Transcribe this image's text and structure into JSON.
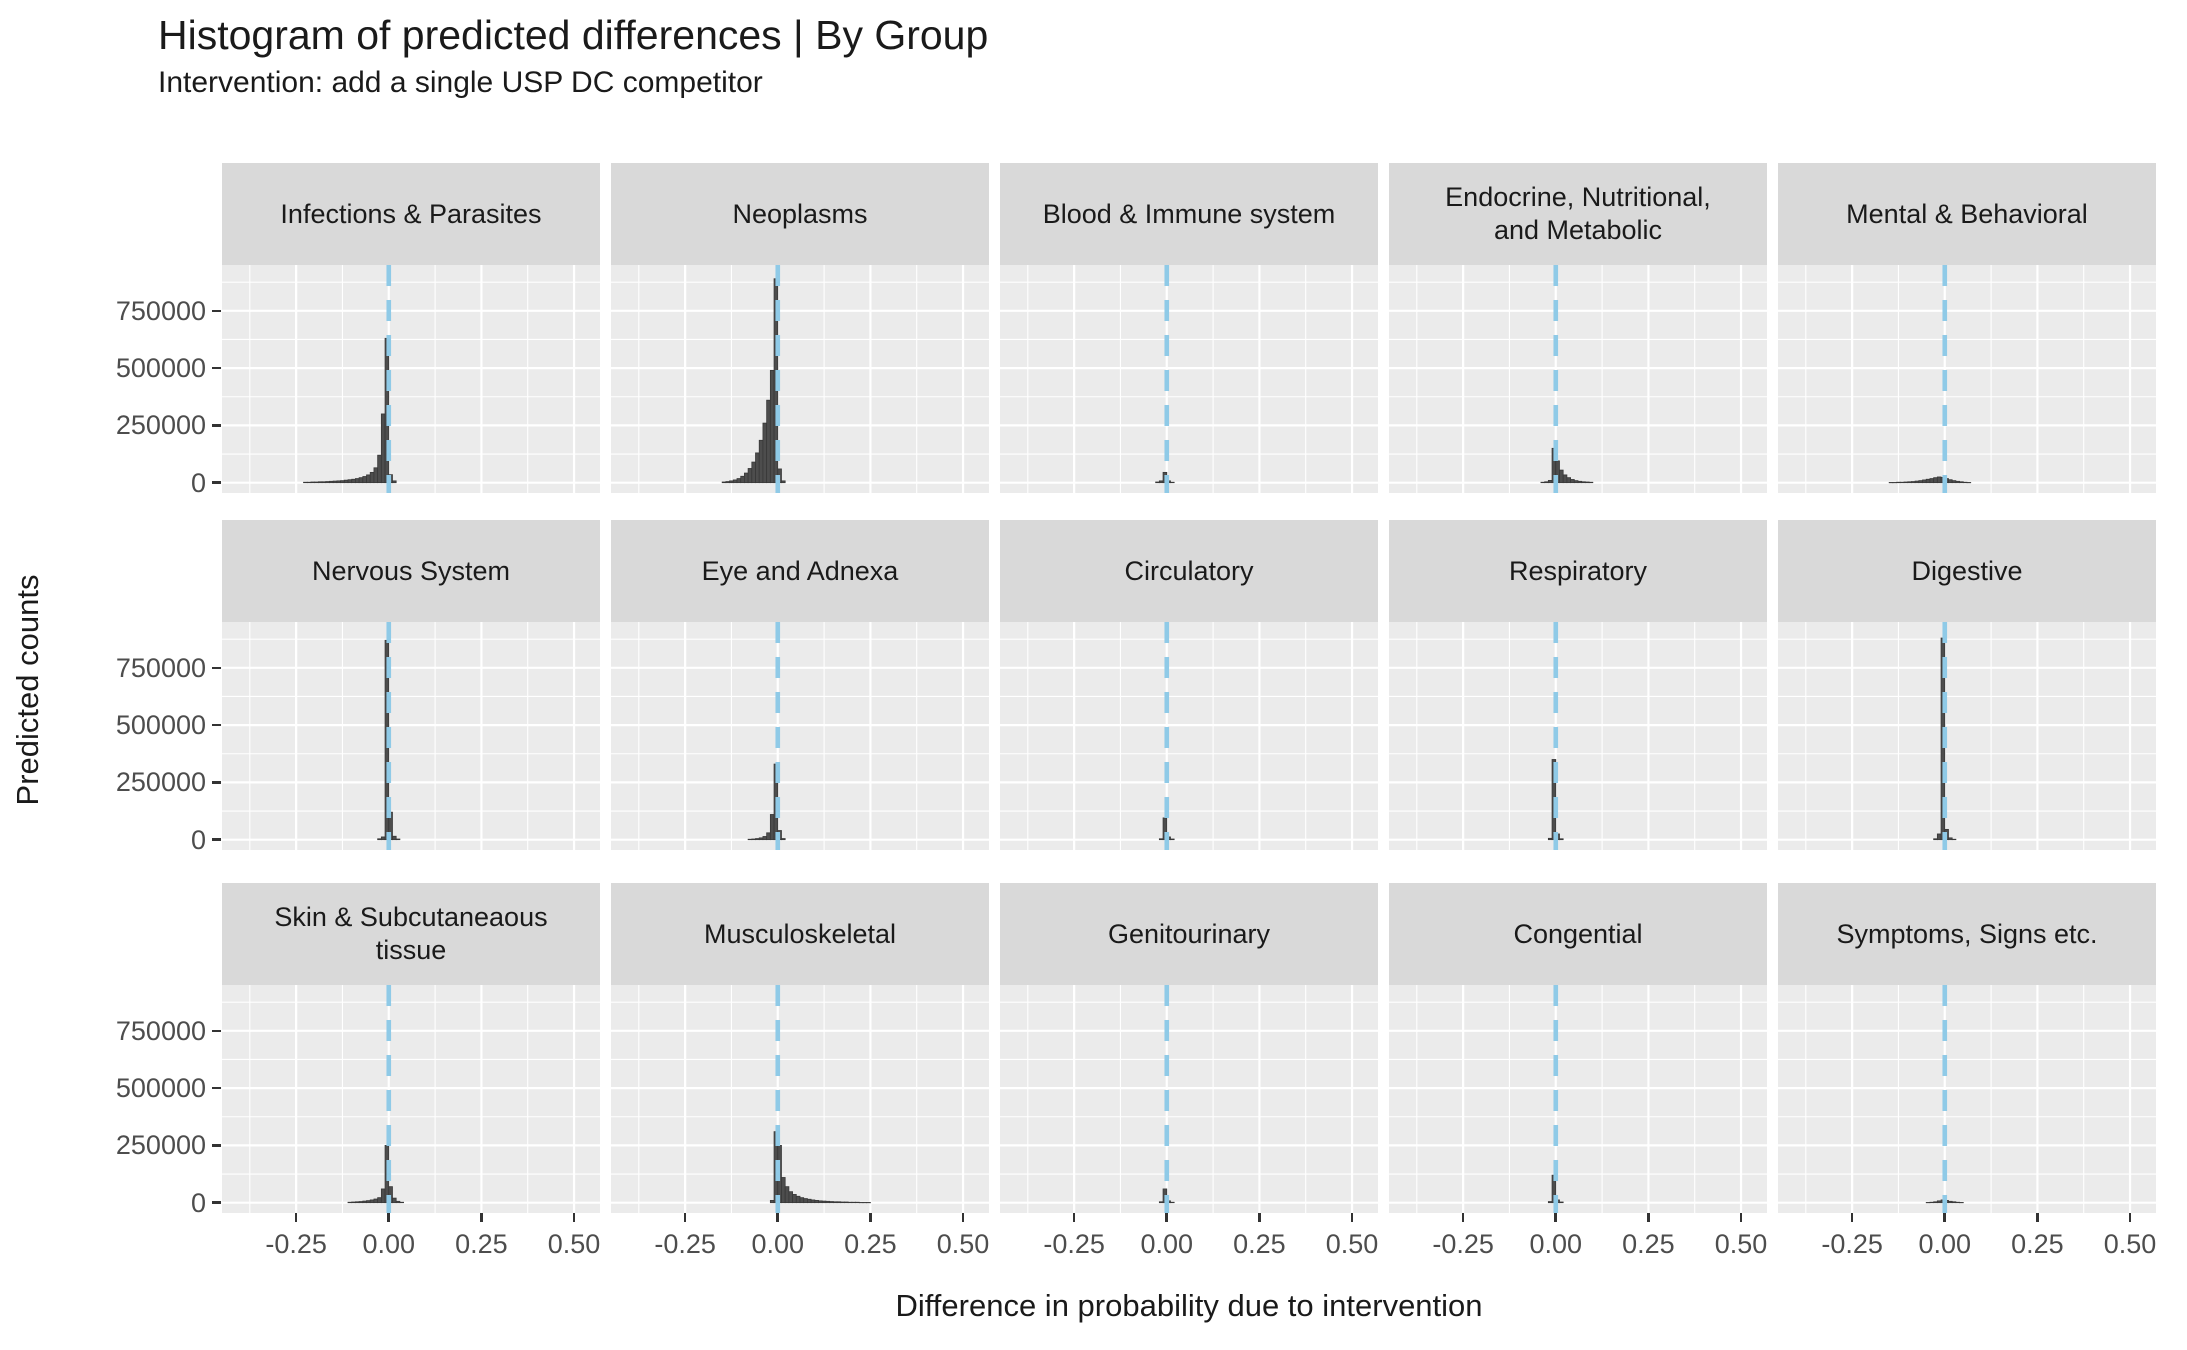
{
  "header": {
    "title": "Histogram of predicted differences | By Group",
    "subtitle": "Intervention: add a single USP DC competitor"
  },
  "chart_data": {
    "type": "histogram",
    "title": "Histogram of predicted differences | By Group",
    "subtitle": "Intervention: add a single USP DC competitor",
    "xlabel": "Difference in probability due to intervention",
    "ylabel": "Predicted counts",
    "facet_layout": {
      "rows": 3,
      "cols": 5
    },
    "x_domain": [
      -0.45,
      0.57
    ],
    "y_domain": [
      -45000,
      950000
    ],
    "x_tick_values": [
      -0.25,
      0.0,
      0.25,
      0.5
    ],
    "x_tick_labels": [
      "-0.25",
      "0.00",
      "0.25",
      "0.50"
    ],
    "y_tick_values": [
      0,
      250000,
      500000,
      750000
    ],
    "y_tick_labels": [
      "0",
      "250000",
      "500000",
      "750000"
    ],
    "x_minor_ticks": [
      -0.375,
      -0.125,
      0.125,
      0.375
    ],
    "y_minor_ticks": [
      125000,
      375000,
      625000,
      875000
    ],
    "grid": "on",
    "panel_bg": "#EBEBEB",
    "strip_bg": "#D9D9D9",
    "grid_color": "#FFFFFF",
    "bar_fill": "#4D4D4D",
    "bar_stroke": "#383838",
    "reference_line": {
      "x": 0,
      "color": "#8FCAE7",
      "style": "dashed"
    },
    "binwidth": 0.01,
    "facets": [
      {
        "label": "Infections & Parasites",
        "bin_start": -0.23,
        "counts": [
          2000,
          2000,
          3000,
          3000,
          4000,
          4000,
          5000,
          6000,
          7000,
          8000,
          9000,
          11000,
          13000,
          15000,
          18000,
          22000,
          27000,
          34000,
          45000,
          65000,
          120000,
          300000,
          630000,
          35000,
          8000
        ]
      },
      {
        "label": "Neoplasms",
        "bin_start": -0.15,
        "counts": [
          3000,
          5000,
          8000,
          12000,
          18000,
          28000,
          42000,
          62000,
          90000,
          130000,
          185000,
          260000,
          360000,
          490000,
          890000,
          60000,
          8000
        ]
      },
      {
        "label": "Blood & Immune system",
        "bin_start": -0.03,
        "counts": [
          3000,
          8000,
          45000,
          8000,
          2000
        ]
      },
      {
        "label": "Endocrine, Nutritional,\nand Metabolic",
        "bin_start": -0.04,
        "counts": [
          2000,
          4000,
          10000,
          150000,
          95000,
          55000,
          34000,
          22000,
          14000,
          9000,
          6000,
          4000,
          3000,
          2000
        ]
      },
      {
        "label": "Mental & Behavioral",
        "bin_start": -0.15,
        "counts": [
          1000,
          1000,
          2000,
          2000,
          3000,
          4000,
          5000,
          7000,
          9000,
          12000,
          15000,
          18000,
          22000,
          25000,
          23000,
          18000,
          13000,
          9000,
          6000,
          4000,
          2000,
          1000
        ]
      },
      {
        "label": "Nervous System",
        "bin_start": -0.03,
        "counts": [
          4000,
          12000,
          870000,
          120000,
          15000,
          3000
        ]
      },
      {
        "label": "Eye and Adnexa",
        "bin_start": -0.08,
        "counts": [
          2000,
          3000,
          5000,
          8000,
          14000,
          30000,
          110000,
          330000,
          40000,
          5000
        ]
      },
      {
        "label": "Circulatory",
        "bin_start": -0.02,
        "counts": [
          4000,
          95000,
          12000,
          3000
        ]
      },
      {
        "label": "Respiratory",
        "bin_start": -0.02,
        "counts": [
          6000,
          350000,
          25000,
          4000
        ]
      },
      {
        "label": "Digestive",
        "bin_start": -0.03,
        "counts": [
          4000,
          25000,
          880000,
          45000,
          8000,
          2000
        ]
      },
      {
        "label": "Skin & Subcutaneaous\ntissue",
        "bin_start": -0.11,
        "counts": [
          2000,
          3000,
          4000,
          5000,
          7000,
          9000,
          12000,
          16000,
          22000,
          60000,
          250000,
          70000,
          20000,
          6000,
          2000
        ]
      },
      {
        "label": "Musculoskeletal",
        "bin_start": -0.02,
        "counts": [
          10000,
          310000,
          250000,
          110000,
          70000,
          48000,
          36000,
          28000,
          22000,
          18000,
          15000,
          12000,
          10000,
          8000,
          7000,
          6000,
          5000,
          4000,
          4000,
          3000,
          3000,
          2000,
          2000,
          2000,
          1000,
          1000,
          1000
        ]
      },
      {
        "label": "Genitourinary",
        "bin_start": -0.02,
        "counts": [
          4000,
          60000,
          8000,
          2000
        ]
      },
      {
        "label": "Congential",
        "bin_start": -0.02,
        "counts": [
          5000,
          120000,
          12000,
          3000
        ]
      },
      {
        "label": "Symptoms, Signs etc.",
        "bin_start": -0.05,
        "counts": [
          1000,
          2000,
          4000,
          8000,
          12000,
          10000,
          6000,
          4000,
          2000,
          1000
        ]
      }
    ]
  }
}
